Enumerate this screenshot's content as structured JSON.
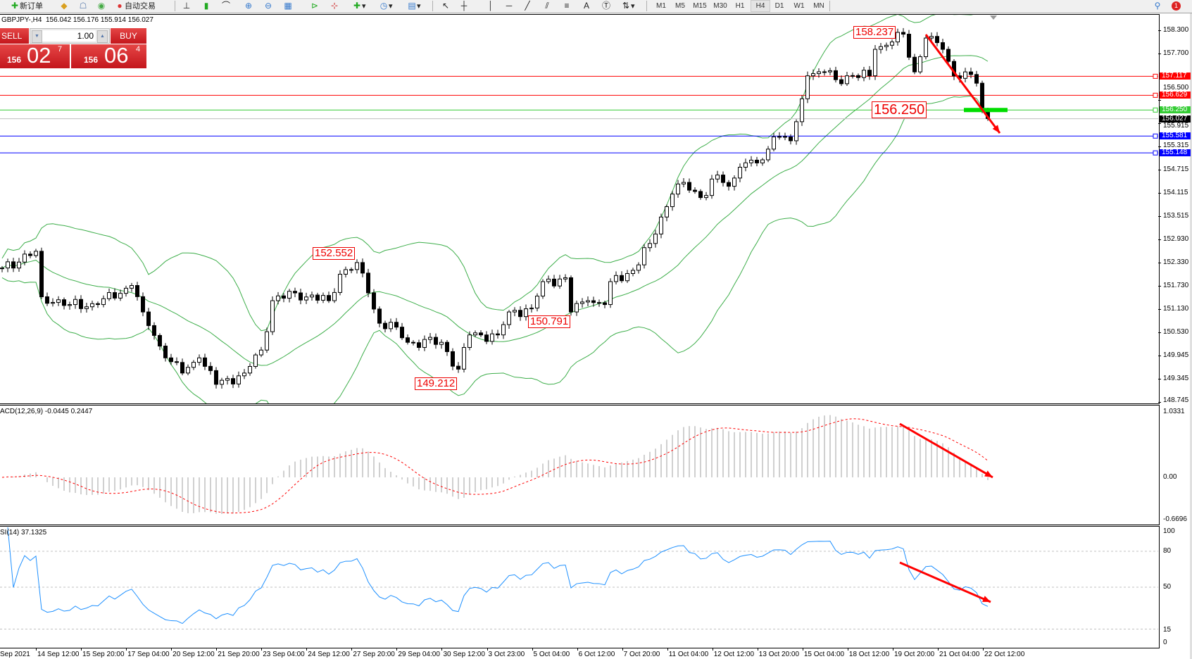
{
  "toolbar": {
    "new_order": "新订单",
    "auto_trading": "自动交易",
    "timeframes": [
      "M1",
      "M5",
      "M15",
      "M30",
      "H1",
      "H4",
      "D1",
      "W1",
      "MN"
    ],
    "active_timeframe": "H4",
    "notification_count": "1"
  },
  "chart": {
    "title": "GBPJPY-,H4  156.042 156.176 155.914 156.027",
    "one_click": {
      "sell_label": "SELL",
      "buy_label": "BUY",
      "lot": "1.00",
      "bid_big": "156",
      "bid_main": "02",
      "bid_small": "7",
      "ask_big": "156",
      "ask_main": "06",
      "ask_small": "4"
    },
    "price_axis": [
      "158.300",
      "157.700",
      "156.500",
      "155.915",
      "155.315",
      "154.715",
      "154.115",
      "153.515",
      "152.930",
      "152.330",
      "151.730",
      "151.130",
      "150.530",
      "149.945",
      "149.345",
      "148.745"
    ],
    "levels": [
      {
        "price": "157.117",
        "color": "#ff0000"
      },
      {
        "price": "156.629",
        "color": "#ff0000"
      },
      {
        "price": "156.250",
        "color": "#33cc33"
      },
      {
        "price": "156.027",
        "color": "#000000",
        "line": "#c0c0c0"
      },
      {
        "price": "155.581",
        "color": "#0000ff"
      },
      {
        "price": "155.148",
        "color": "#0000ff"
      }
    ],
    "annotations": [
      "158.237",
      "152.552",
      "150.791",
      "149.212",
      "156.250"
    ],
    "time_axis": [
      "Sep 2021",
      "14 Sep 12:00",
      "15 Sep 20:00",
      "17 Sep 04:00",
      "20 Sep 12:00",
      "21 Sep 20:00",
      "23 Sep 04:00",
      "24 Sep 12:00",
      "27 Sep 20:00",
      "29 Sep 04:00",
      "30 Sep 12:00",
      "3 Oct 23:00",
      "5 Oct 04:00",
      "6 Oct 12:00",
      "7 Oct 20:00",
      "11 Oct 04:00",
      "12 Oct 12:00",
      "13 Oct 20:00",
      "15 Oct 04:00",
      "18 Oct 12:00",
      "19 Oct 20:00",
      "21 Oct 04:00",
      "22 Oct 12:00"
    ],
    "colors": {
      "bands": "#3dae4a",
      "arrow": "#ff0000",
      "rsi": "#1e90ff",
      "macd_hist": "#c0c0c0",
      "macd_signal": "#ff0000"
    }
  },
  "macd": {
    "title": "ACD(12,26,9) -0.0445 0.2447",
    "axis": [
      "1.0331",
      "0.00",
      "-0.6696"
    ],
    "range": [
      -0.6696,
      1.0331
    ]
  },
  "rsi": {
    "title": "SI(14) 37.1325",
    "axis": [
      "100",
      "80",
      "50",
      "15",
      "0"
    ],
    "levels": [
      80,
      50,
      15
    ]
  },
  "chart_data": {
    "type": "candlestick",
    "symbol": "GBPJPY",
    "timeframe": "H4",
    "ylim": [
      148.745,
      158.6
    ],
    "last": 156.027,
    "price_path": [
      [
        0,
        152.19
      ],
      [
        6,
        152.62
      ],
      [
        7,
        151.45
      ],
      [
        12,
        151.25
      ],
      [
        17,
        151.25
      ],
      [
        23,
        151.74
      ],
      [
        25,
        151.06
      ],
      [
        29,
        149.88
      ],
      [
        32,
        149.49
      ],
      [
        35,
        149.88
      ],
      [
        38,
        149.2
      ],
      [
        43,
        149.49
      ],
      [
        46,
        150.08
      ],
      [
        48,
        151.35
      ],
      [
        52,
        151.55
      ],
      [
        58,
        151.35
      ],
      [
        60,
        152.03
      ],
      [
        63,
        152.33
      ],
      [
        65,
        151.55
      ],
      [
        67,
        150.77
      ],
      [
        70,
        150.67
      ],
      [
        72,
        150.28
      ],
      [
        78,
        150.28
      ],
      [
        81,
        149.59
      ],
      [
        83,
        150.47
      ],
      [
        88,
        150.47
      ],
      [
        90,
        151.06
      ],
      [
        94,
        151.16
      ],
      [
        96,
        151.84
      ],
      [
        100,
        151.94
      ],
      [
        101,
        151.06
      ],
      [
        104,
        151.35
      ],
      [
        107,
        151.25
      ],
      [
        108,
        151.84
      ],
      [
        112,
        152.13
      ],
      [
        115,
        152.82
      ],
      [
        117,
        153.5
      ],
      [
        119,
        154.09
      ],
      [
        121,
        154.39
      ],
      [
        124,
        154.0
      ],
      [
        127,
        154.58
      ],
      [
        129,
        154.29
      ],
      [
        131,
        154.78
      ],
      [
        135,
        154.97
      ],
      [
        137,
        155.56
      ],
      [
        140,
        155.46
      ],
      [
        141,
        155.95
      ],
      [
        143,
        157.13
      ],
      [
        146,
        157.23
      ],
      [
        148,
        157.03
      ],
      [
        150,
        157.13
      ],
      [
        154,
        157.13
      ],
      [
        155,
        157.81
      ],
      [
        158,
        158.0
      ],
      [
        160,
        158.2
      ],
      [
        162,
        157.23
      ],
      [
        164,
        158.1
      ],
      [
        167,
        157.81
      ],
      [
        169,
        157.13
      ],
      [
        171,
        157.23
      ],
      [
        173,
        156.94
      ],
      [
        174,
        156.24
      ],
      [
        175,
        156.03
      ]
    ]
  }
}
